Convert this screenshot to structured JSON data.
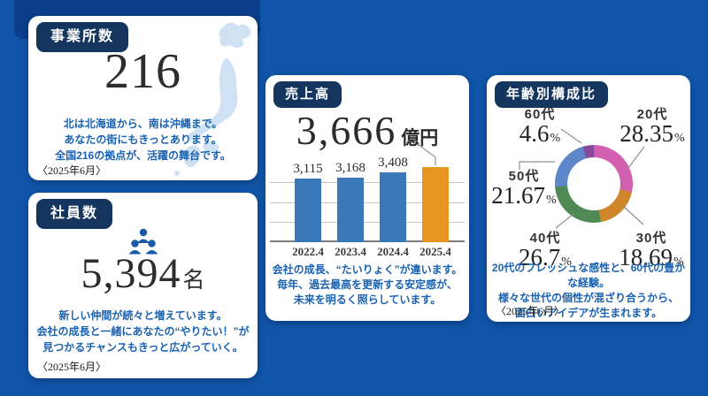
{
  "theme": {
    "background": "#1055a9",
    "accent_panel": "#0a3e8a",
    "badge_navy": "#14365e",
    "text_blue": "#1a62b2",
    "map_blue": "#cfe1f3",
    "icon_blue": "#1b59a9"
  },
  "icons": {
    "japan_map": "japan-map-icon",
    "people": "people-icon"
  },
  "cards": {
    "offices": {
      "badge": "事業所数",
      "value": "216",
      "desc_lines": [
        "北は北海道から、南は沖縄まで。",
        "あなたの街にもきっとあります。",
        "全国216の拠点が、活躍の舞台です。"
      ],
      "footnote": "〈2025年6月〉"
    },
    "employees": {
      "badge": "社員数",
      "value": "5,394",
      "unit": "名",
      "desc_lines": [
        "新しい仲間が続々と増えています。",
        "会社の成長と一緒にあなたの“やりたい！”が",
        "見つかるチャンスもきっと広がっていく。"
      ],
      "footnote": "〈2025年6月〉"
    },
    "sales": {
      "badge": "売上高",
      "value": "3,666",
      "unit": "億円",
      "desc_lines": [
        "会社の成長、“たいりょく”が違います。",
        "毎年、過去最高を更新する安定感が、",
        "未来を明るく照らしています。"
      ]
    },
    "age": {
      "badge": "年齢別構成比",
      "desc_lines": [
        "20代のフレッシュな感性と、60代の豊かな経験。",
        "様々な世代の個性が混ざり合うから、",
        "面白いアイデアが生まれます。"
      ],
      "footnote": "〈2025年6月〉"
    }
  },
  "chart_data": [
    {
      "type": "bar",
      "title": "売上高",
      "categories": [
        "2022.4",
        "2023.4",
        "2024.4",
        "2025.4"
      ],
      "values": [
        3115,
        3168,
        3408,
        3666
      ],
      "value_labels": [
        "3,115",
        "3,168",
        "3,408",
        ""
      ],
      "unit": "億円",
      "ylim": [
        0,
        3666
      ],
      "bar_color": "#3a78ba",
      "highlight_index": 3,
      "highlight_color": "#e59722",
      "grid": true,
      "legend": false
    },
    {
      "type": "pie",
      "donut": true,
      "title": "年齢別構成比",
      "unit": "%",
      "items": [
        {
          "label": "20代",
          "value": 28.35,
          "display": "28.35",
          "color": "#d25fb0"
        },
        {
          "label": "30代",
          "value": 18.69,
          "display": "18.69",
          "color": "#d0862b"
        },
        {
          "label": "40代",
          "value": 26.7,
          "display": "26.7",
          "color": "#4f8a54"
        },
        {
          "label": "50代",
          "value": 21.67,
          "display": "21.67",
          "color": "#5d87c8"
        },
        {
          "label": "60代",
          "value": 4.6,
          "display": "4.6",
          "color": "#88489b"
        }
      ],
      "legend": false
    }
  ]
}
